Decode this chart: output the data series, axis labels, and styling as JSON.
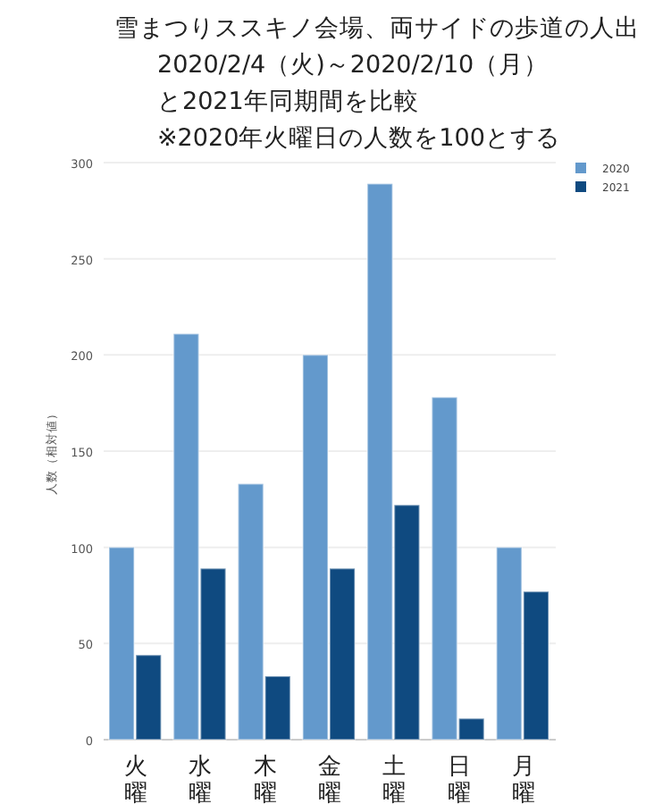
{
  "chart_data": {
    "type": "bar",
    "title": "雪まつりススキノ会場、両サイドの歩道の人出",
    "subtitle": "2020/2/4（火)～2020/2/10（月）と2021年同期間を比較",
    "annotations": [
      "※2020年火曜日の人数を100とする"
    ],
    "ylabel": "人数（相対値）",
    "categories": [
      "火曜",
      "水曜",
      "木曜",
      "金曜",
      "土曜",
      "日曜",
      "月曜"
    ],
    "series": [
      {
        "name": "2020",
        "color": "#6399cc",
        "values": [
          100,
          211,
          133,
          200,
          289,
          178,
          100
        ]
      },
      {
        "name": "2021",
        "color": "#0f4a80",
        "values": [
          44,
          89,
          33,
          89,
          122,
          11,
          77
        ]
      }
    ],
    "ylim": [
      0,
      300
    ],
    "yticks": [
      0,
      50,
      100,
      150,
      200,
      250,
      300
    ],
    "grid": "y",
    "legend": "top right"
  }
}
